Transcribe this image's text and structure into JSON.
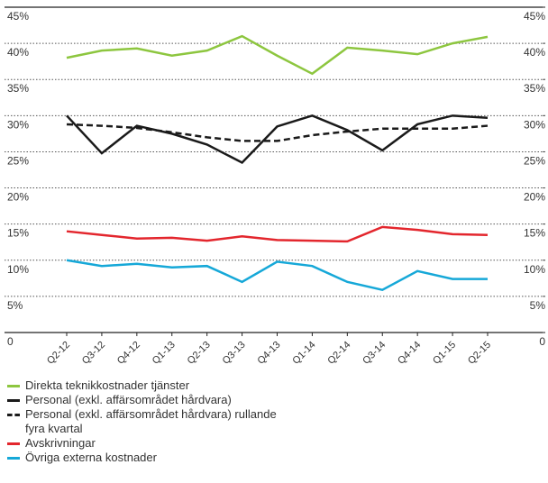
{
  "chart_data": {
    "type": "line",
    "categories": [
      "Q2-12",
      "Q3-12",
      "Q4-12",
      "Q1-13",
      "Q2-13",
      "Q3-13",
      "Q4-13",
      "Q1-14",
      "Q2-14",
      "Q3-14",
      "Q4-14",
      "Q1-15",
      "Q2-15"
    ],
    "series": [
      {
        "name": "Direkta teknikkostnader tjänster",
        "color": "#8dc63f",
        "dash": false,
        "values": [
          38,
          39,
          39.3,
          38.3,
          39,
          41,
          38.3,
          35.8,
          39.4,
          39,
          38.5,
          40,
          40.9
        ]
      },
      {
        "name": "Personal (exkl. affärsområdet hårdvara)",
        "color": "#1a1a1a",
        "dash": false,
        "values": [
          30,
          24.8,
          28.6,
          27.5,
          26,
          23.5,
          28.5,
          30,
          28,
          25.2,
          28.8,
          30,
          29.7
        ]
      },
      {
        "name": "Personal (exkl. affärsområdet hårdvara) rullande fyra kvartal",
        "color": "#1a1a1a",
        "dash": true,
        "values": [
          28.8,
          28.6,
          28.3,
          27.7,
          27,
          26.5,
          26.5,
          27.3,
          27.8,
          28.2,
          28.2,
          28.2,
          28.6
        ]
      },
      {
        "name": "Avskrivningar",
        "color": "#e3262d",
        "dash": false,
        "values": [
          14,
          13.5,
          13,
          13.1,
          12.7,
          13.3,
          12.8,
          12.7,
          12.6,
          14.6,
          14.2,
          13.6,
          13.5
        ]
      },
      {
        "name": "Övriga externa kostnader",
        "color": "#16a8d8",
        "dash": false,
        "values": [
          10,
          9.2,
          9.5,
          9,
          9.2,
          7,
          9.8,
          9.2,
          7,
          5.9,
          8.5,
          7.4,
          7.4
        ]
      }
    ],
    "ylim": [
      0,
      45
    ],
    "yticks": [
      0,
      {
        "value": 5,
        "label": "5%"
      },
      {
        "value": 10,
        "label": "10%"
      },
      {
        "value": 15,
        "label": "15%"
      },
      {
        "value": 20,
        "label": "20%"
      },
      {
        "value": 25,
        "label": "25%"
      },
      {
        "value": 30,
        "label": "30%"
      },
      {
        "value": 35,
        "label": "35%"
      },
      {
        "value": 40,
        "label": "40%"
      },
      {
        "value": 45,
        "label": "45%"
      }
    ],
    "y2lim": [
      0,
      45
    ],
    "y2ticks": [
      0,
      {
        "value": 5,
        "label": "5%"
      },
      {
        "value": 10,
        "label": "10%"
      },
      {
        "value": 15,
        "label": "15%"
      },
      {
        "value": 20,
        "label": "20%"
      },
      {
        "value": 25,
        "label": "25%"
      },
      {
        "value": 30,
        "label": "30%"
      },
      {
        "value": 35,
        "label": "35%"
      },
      {
        "value": 40,
        "label": "40%"
      },
      {
        "value": 45,
        "label": "45%"
      }
    ],
    "grid": true
  }
}
